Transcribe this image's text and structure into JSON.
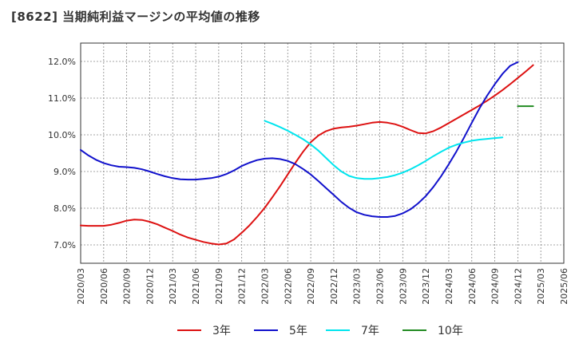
{
  "chart_data": {
    "type": "line",
    "title": "[8622]  当期純利益マージンの平均値の推移",
    "xlabel": "",
    "ylabel": "",
    "x_ticks": [
      "2020/03",
      "2020/06",
      "2020/09",
      "2020/12",
      "2021/03",
      "2021/06",
      "2021/09",
      "2021/12",
      "2022/03",
      "2022/06",
      "2022/09",
      "2022/12",
      "2023/03",
      "2023/06",
      "2023/09",
      "2023/12",
      "2024/03",
      "2024/06",
      "2024/09",
      "2024/12",
      "2025/03",
      "2025/06"
    ],
    "ylim": [
      6.5,
      12.5
    ],
    "y_ticks": [
      7.0,
      8.0,
      9.0,
      10.0,
      11.0,
      12.0
    ],
    "y_tick_labels": [
      "7.0%",
      "8.0%",
      "9.0%",
      "10.0%",
      "11.0%",
      "12.0%"
    ],
    "grid": true,
    "legend_position": "bottom",
    "series": [
      {
        "name": "3年",
        "color": "#dd1111",
        "points": [
          [
            "2020/03",
            7.53
          ],
          [
            "2020/04",
            7.52
          ],
          [
            "2020/05",
            7.52
          ],
          [
            "2020/06",
            7.52
          ],
          [
            "2020/07",
            7.55
          ],
          [
            "2020/08",
            7.6
          ],
          [
            "2020/09",
            7.66
          ],
          [
            "2020/10",
            7.69
          ],
          [
            "2020/11",
            7.68
          ],
          [
            "2020/12",
            7.63
          ],
          [
            "2021/01",
            7.56
          ],
          [
            "2021/02",
            7.47
          ],
          [
            "2021/03",
            7.38
          ],
          [
            "2021/04",
            7.28
          ],
          [
            "2021/05",
            7.2
          ],
          [
            "2021/06",
            7.14
          ],
          [
            "2021/07",
            7.08
          ],
          [
            "2021/08",
            7.04
          ],
          [
            "2021/09",
            7.01
          ],
          [
            "2021/10",
            7.04
          ],
          [
            "2021/11",
            7.15
          ],
          [
            "2021/12",
            7.33
          ],
          [
            "2022/01",
            7.53
          ],
          [
            "2022/02",
            7.76
          ],
          [
            "2022/03",
            8.01
          ],
          [
            "2022/04",
            8.3
          ],
          [
            "2022/05",
            8.6
          ],
          [
            "2022/06",
            8.92
          ],
          [
            "2022/07",
            9.24
          ],
          [
            "2022/08",
            9.54
          ],
          [
            "2022/09",
            9.8
          ],
          [
            "2022/10",
            9.98
          ],
          [
            "2022/11",
            10.1
          ],
          [
            "2022/12",
            10.17
          ],
          [
            "2023/01",
            10.2
          ],
          [
            "2023/02",
            10.22
          ],
          [
            "2023/03",
            10.25
          ],
          [
            "2023/04",
            10.29
          ],
          [
            "2023/05",
            10.33
          ],
          [
            "2023/06",
            10.35
          ],
          [
            "2023/07",
            10.33
          ],
          [
            "2023/08",
            10.29
          ],
          [
            "2023/09",
            10.22
          ],
          [
            "2023/10",
            10.13
          ],
          [
            "2023/11",
            10.05
          ],
          [
            "2023/12",
            10.04
          ],
          [
            "2024/01",
            10.1
          ],
          [
            "2024/02",
            10.2
          ],
          [
            "2024/03",
            10.32
          ],
          [
            "2024/04",
            10.44
          ],
          [
            "2024/05",
            10.56
          ],
          [
            "2024/06",
            10.68
          ],
          [
            "2024/07",
            10.8
          ],
          [
            "2024/08",
            10.93
          ],
          [
            "2024/09",
            11.07
          ],
          [
            "2024/10",
            11.22
          ],
          [
            "2024/11",
            11.38
          ],
          [
            "2024/12",
            11.55
          ],
          [
            "2025/01",
            11.72
          ],
          [
            "2025/02",
            11.9
          ]
        ]
      },
      {
        "name": "5年",
        "color": "#1111cc",
        "points": [
          [
            "2020/03",
            9.59
          ],
          [
            "2020/04",
            9.44
          ],
          [
            "2020/05",
            9.32
          ],
          [
            "2020/06",
            9.23
          ],
          [
            "2020/07",
            9.17
          ],
          [
            "2020/08",
            9.13
          ],
          [
            "2020/09",
            9.12
          ],
          [
            "2020/10",
            9.1
          ],
          [
            "2020/11",
            9.06
          ],
          [
            "2020/12",
            9.0
          ],
          [
            "2021/01",
            8.93
          ],
          [
            "2021/02",
            8.87
          ],
          [
            "2021/03",
            8.82
          ],
          [
            "2021/04",
            8.79
          ],
          [
            "2021/05",
            8.78
          ],
          [
            "2021/06",
            8.78
          ],
          [
            "2021/07",
            8.8
          ],
          [
            "2021/08",
            8.82
          ],
          [
            "2021/09",
            8.86
          ],
          [
            "2021/10",
            8.93
          ],
          [
            "2021/11",
            9.03
          ],
          [
            "2021/12",
            9.15
          ],
          [
            "2022/01",
            9.24
          ],
          [
            "2022/02",
            9.31
          ],
          [
            "2022/03",
            9.35
          ],
          [
            "2022/04",
            9.36
          ],
          [
            "2022/05",
            9.34
          ],
          [
            "2022/06",
            9.29
          ],
          [
            "2022/07",
            9.2
          ],
          [
            "2022/08",
            9.07
          ],
          [
            "2022/09",
            8.92
          ],
          [
            "2022/10",
            8.74
          ],
          [
            "2022/11",
            8.55
          ],
          [
            "2022/12",
            8.36
          ],
          [
            "2023/01",
            8.17
          ],
          [
            "2023/02",
            8.01
          ],
          [
            "2023/03",
            7.89
          ],
          [
            "2023/04",
            7.82
          ],
          [
            "2023/05",
            7.78
          ],
          [
            "2023/06",
            7.76
          ],
          [
            "2023/07",
            7.76
          ],
          [
            "2023/08",
            7.79
          ],
          [
            "2023/09",
            7.86
          ],
          [
            "2023/10",
            7.97
          ],
          [
            "2023/11",
            8.13
          ],
          [
            "2023/12",
            8.33
          ],
          [
            "2024/01",
            8.58
          ],
          [
            "2024/02",
            8.87
          ],
          [
            "2024/03",
            9.2
          ],
          [
            "2024/04",
            9.55
          ],
          [
            "2024/05",
            9.93
          ],
          [
            "2024/06",
            10.33
          ],
          [
            "2024/07",
            10.72
          ],
          [
            "2024/08",
            11.07
          ],
          [
            "2024/09",
            11.38
          ],
          [
            "2024/10",
            11.66
          ],
          [
            "2024/11",
            11.88
          ],
          [
            "2024/12",
            11.98
          ]
        ]
      },
      {
        "name": "7年",
        "color": "#00e5ee",
        "points": [
          [
            "2022/03",
            10.38
          ],
          [
            "2022/04",
            10.3
          ],
          [
            "2022/05",
            10.21
          ],
          [
            "2022/06",
            10.11
          ],
          [
            "2022/07",
            10.0
          ],
          [
            "2022/08",
            9.88
          ],
          [
            "2022/09",
            9.74
          ],
          [
            "2022/10",
            9.57
          ],
          [
            "2022/11",
            9.37
          ],
          [
            "2022/12",
            9.17
          ],
          [
            "2023/01",
            9.0
          ],
          [
            "2023/02",
            8.88
          ],
          [
            "2023/03",
            8.82
          ],
          [
            "2023/04",
            8.8
          ],
          [
            "2023/05",
            8.8
          ],
          [
            "2023/06",
            8.82
          ],
          [
            "2023/07",
            8.85
          ],
          [
            "2023/08",
            8.9
          ],
          [
            "2023/09",
            8.97
          ],
          [
            "2023/10",
            9.06
          ],
          [
            "2023/11",
            9.17
          ],
          [
            "2023/12",
            9.29
          ],
          [
            "2024/01",
            9.42
          ],
          [
            "2024/02",
            9.54
          ],
          [
            "2024/03",
            9.65
          ],
          [
            "2024/04",
            9.73
          ],
          [
            "2024/05",
            9.79
          ],
          [
            "2024/06",
            9.84
          ],
          [
            "2024/07",
            9.87
          ],
          [
            "2024/08",
            9.89
          ],
          [
            "2024/09",
            9.91
          ],
          [
            "2024/10",
            9.93
          ]
        ]
      },
      {
        "name": "10年",
        "color": "#228b22",
        "points": [
          [
            "2024/12",
            10.78
          ],
          [
            "2025/02",
            10.78
          ]
        ]
      }
    ]
  }
}
